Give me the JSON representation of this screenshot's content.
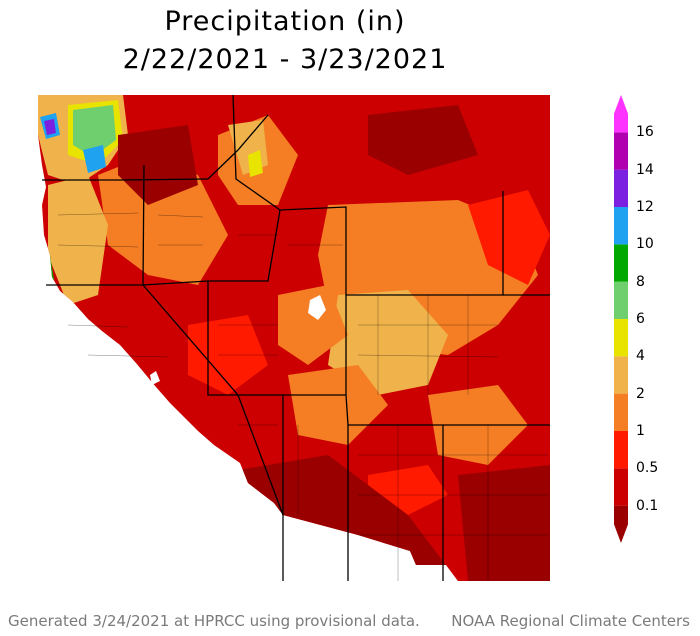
{
  "title": "Precipitation (in)",
  "subtitle": "2/22/2021 - 3/23/2021",
  "legend": {
    "labels": [
      "0.1",
      "0.5",
      "1",
      "2",
      "4",
      "6",
      "8",
      "10",
      "12",
      "14",
      "16"
    ],
    "colors": [
      "#9a0000",
      "#cc0000",
      "#ff1a00",
      "#f57d24",
      "#f0b24a",
      "#e8e400",
      "#6fcf6f",
      "#00a800",
      "#1fa3f0",
      "#7b1fe0",
      "#b000b0",
      "#ff33ff"
    ]
  },
  "footer_left": "Generated 3/24/2021 at HPRCC using provisional data.",
  "footer_right": "NOAA Regional Climate Centers"
}
